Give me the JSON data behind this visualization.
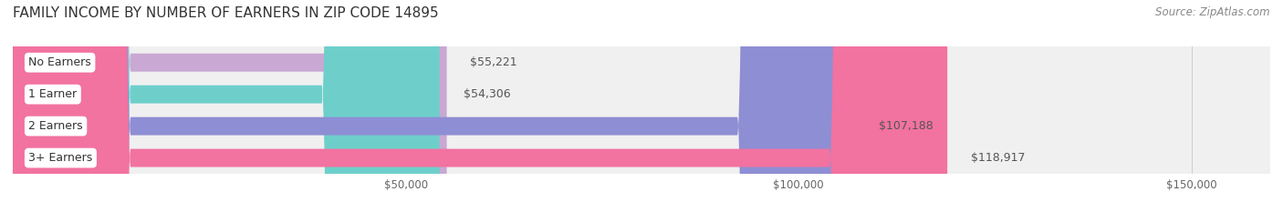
{
  "title": "FAMILY INCOME BY NUMBER OF EARNERS IN ZIP CODE 14895",
  "source": "Source: ZipAtlas.com",
  "categories": [
    "No Earners",
    "1 Earner",
    "2 Earners",
    "3+ Earners"
  ],
  "values": [
    55221,
    54306,
    107188,
    118917
  ],
  "labels": [
    "$55,221",
    "$54,306",
    "$107,188",
    "$118,917"
  ],
  "bar_colors": [
    "#c9a8d4",
    "#6ecfca",
    "#8e8ed4",
    "#f272a0"
  ],
  "bar_bg_color": "#f0f0f0",
  "background_color": "#ffffff",
  "xmax": 160000,
  "xticks": [
    50000,
    100000,
    150000
  ],
  "xtick_labels": [
    "$50,000",
    "$100,000",
    "$150,000"
  ],
  "title_fontsize": 11,
  "source_fontsize": 8.5,
  "label_fontsize": 9,
  "category_fontsize": 9,
  "bar_height": 0.55,
  "row_bg_colors": [
    "#f5f5f5",
    "#f5f5f5",
    "#f5f5f5",
    "#f5f5f5"
  ]
}
